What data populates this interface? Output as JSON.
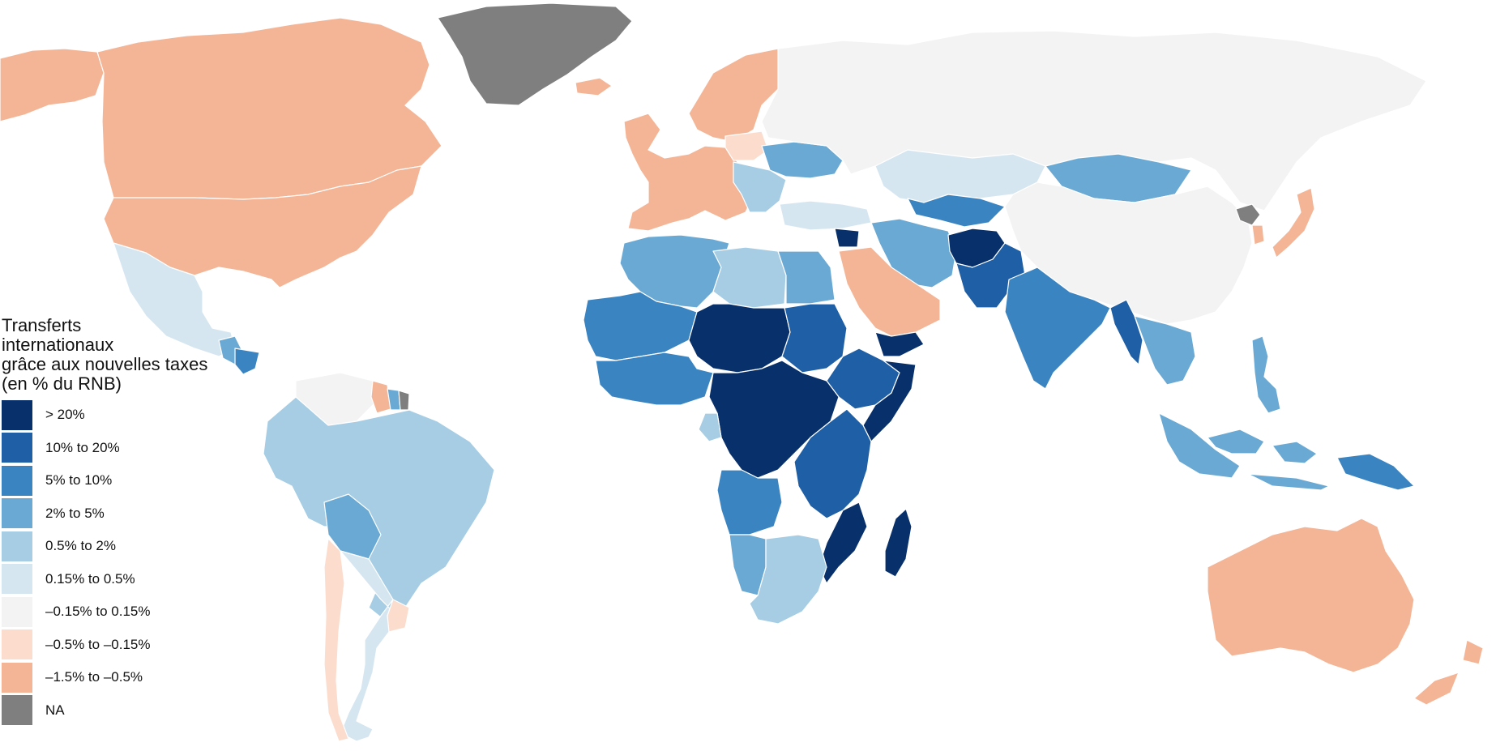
{
  "legend": {
    "title_lines": [
      "Transferts",
      "internationaux",
      "grâce aux nouvelles taxes",
      "(en % du RNB)"
    ],
    "items": [
      {
        "label": "> 20%",
        "color": "#08306b"
      },
      {
        "label": "10% to 20%",
        "color": "#1f5fa6"
      },
      {
        "label": "5% to 10%",
        "color": "#3a84c1"
      },
      {
        "label": "2% to 5%",
        "color": "#6aa9d3"
      },
      {
        "label": "0.5% to 2%",
        "color": "#a6cde4"
      },
      {
        "label": "0.15% to 0.5%",
        "color": "#d6e6f1"
      },
      {
        "label": "–0.15% to 0.15%",
        "color": "#f3f3f3"
      },
      {
        "label": "–0.5% to –0.15%",
        "color": "#fbdccd"
      },
      {
        "label": "–1.5% to –0.5%",
        "color": "#f4b596"
      },
      {
        "label": "NA",
        "color": "#7f7f7f"
      }
    ]
  },
  "regions": [
    {
      "name": "canada",
      "class": "–1.5% to –0.5%"
    },
    {
      "name": "united-states",
      "class": "–1.5% to –0.5%"
    },
    {
      "name": "alaska",
      "class": "–1.5% to –0.5%"
    },
    {
      "name": "greenland",
      "class": "NA"
    },
    {
      "name": "mexico",
      "class": "0.15% to 0.5%"
    },
    {
      "name": "central-america",
      "class": "2% to 5%"
    },
    {
      "name": "honduras",
      "class": "5% to 10%"
    },
    {
      "name": "venezuela",
      "class": "–0.15% to 0.15%"
    },
    {
      "name": "guyana",
      "class": "–1.5% to –0.5%"
    },
    {
      "name": "suriname",
      "class": "2% to 5%"
    },
    {
      "name": "french-guiana",
      "class": "NA"
    },
    {
      "name": "brazil",
      "class": "0.5% to 2%"
    },
    {
      "name": "bolivia",
      "class": "2% to 5%"
    },
    {
      "name": "argentina",
      "class": "0.15% to 0.5%"
    },
    {
      "name": "chile",
      "class": "–0.5% to –0.15%"
    },
    {
      "name": "uruguay",
      "class": "–0.5% to –0.15%"
    },
    {
      "name": "western-europe",
      "class": "–1.5% to –0.5%"
    },
    {
      "name": "scandinavia",
      "class": "–1.5% to –0.5%"
    },
    {
      "name": "iceland",
      "class": "–1.5% to –0.5%"
    },
    {
      "name": "poland",
      "class": "–0.5% to –0.15%"
    },
    {
      "name": "ukraine",
      "class": "2% to 5%"
    },
    {
      "name": "balkans",
      "class": "0.5% to 2%"
    },
    {
      "name": "russia",
      "class": "–0.15% to 0.15%"
    },
    {
      "name": "kazakhstan",
      "class": "0.15% to 0.5%"
    },
    {
      "name": "mongolia",
      "class": "2% to 5%"
    },
    {
      "name": "china",
      "class": "–0.15% to 0.15%"
    },
    {
      "name": "north-korea",
      "class": "NA"
    },
    {
      "name": "south-korea",
      "class": "–1.5% to –0.5%"
    },
    {
      "name": "japan",
      "class": "–1.5% to –0.5%"
    },
    {
      "name": "turkey",
      "class": "0.15% to 0.5%"
    },
    {
      "name": "central-asia",
      "class": "5% to 10%"
    },
    {
      "name": "iran",
      "class": "2% to 5%"
    },
    {
      "name": "afghanistan",
      "class": "> 20%"
    },
    {
      "name": "pakistan",
      "class": "10% to 20%"
    },
    {
      "name": "india",
      "class": "5% to 10%"
    },
    {
      "name": "myanmar",
      "class": "10% to 20%"
    },
    {
      "name": "indochina",
      "class": "2% to 5%"
    },
    {
      "name": "saudi-arabia",
      "class": "–1.5% to –0.5%"
    },
    {
      "name": "yemen",
      "class": "> 20%"
    },
    {
      "name": "syria",
      "class": "> 20%"
    },
    {
      "name": "north-africa",
      "class": "2% to 5%"
    },
    {
      "name": "libya",
      "class": "0.5% to 2%"
    },
    {
      "name": "egypt",
      "class": "2% to 5%"
    },
    {
      "name": "sahel-west",
      "class": "5% to 10%"
    },
    {
      "name": "sahel-central",
      "class": "> 20%"
    },
    {
      "name": "sudan",
      "class": "10% to 20%"
    },
    {
      "name": "horn-of-africa",
      "class": "10% to 20%"
    },
    {
      "name": "somalia",
      "class": "> 20%"
    },
    {
      "name": "gulf-of-guinea",
      "class": "5% to 10%"
    },
    {
      "name": "central-africa",
      "class": "> 20%"
    },
    {
      "name": "gabon",
      "class": "0.5% to 2%"
    },
    {
      "name": "east-africa",
      "class": "10% to 20%"
    },
    {
      "name": "angola",
      "class": "5% to 10%"
    },
    {
      "name": "mozambique",
      "class": "> 20%"
    },
    {
      "name": "namibia",
      "class": "2% to 5%"
    },
    {
      "name": "southern-africa",
      "class": "0.5% to 2%"
    },
    {
      "name": "madagascar",
      "class": "> 20%"
    },
    {
      "name": "indonesia",
      "class": "2% to 5%"
    },
    {
      "name": "philippines",
      "class": "2% to 5%"
    },
    {
      "name": "papua-new-guinea",
      "class": "5% to 10%"
    },
    {
      "name": "australia",
      "class": "–1.5% to –0.5%"
    },
    {
      "name": "new-zealand",
      "class": "–1.5% to –0.5%"
    }
  ]
}
